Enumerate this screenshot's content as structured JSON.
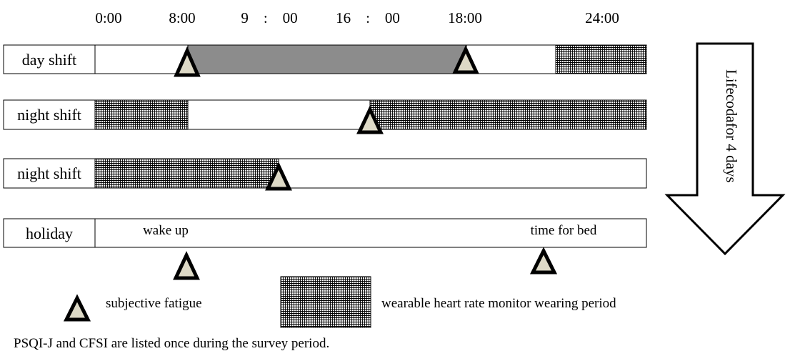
{
  "time_labels": [
    "0:00",
    "8:00",
    "9　:　00",
    "16　:　00",
    "18:00",
    "24:00"
  ],
  "rows": [
    {
      "label": "day shift"
    },
    {
      "label": "night shift"
    },
    {
      "label": "night shift"
    },
    {
      "label": "holiday",
      "annotations": [
        "wake up",
        "time for bed"
      ]
    }
  ],
  "arrow_label": "Lifecodafor 4 days",
  "legend": {
    "fatigue": "subjective fatigue",
    "monitor": "wearable heart rate monitor wearing period"
  },
  "footnote": "PSQI-J and CFSI are listed once during the survey period.",
  "colors": {
    "work_period": "#8c8c8c",
    "triangle_fill": "#ddd9c6",
    "stroke": "#000000"
  }
}
